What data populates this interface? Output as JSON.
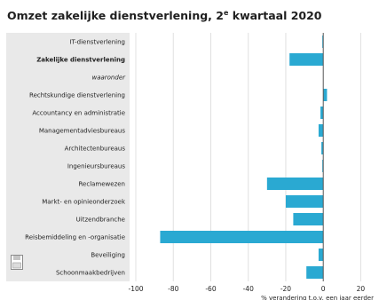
{
  "title": "Omzet zakelijke dienstverlening, 2",
  "title_sup": "e",
  "title_rest": " kwartaal 2020",
  "colors": {
    "bar": "#2aa9d2",
    "grid": "#e0e0e0",
    "label_bg": "#e9e9e9",
    "text": "#1f1f1f",
    "zero_line": "#555555"
  },
  "chart_data": {
    "type": "bar",
    "orientation": "horizontal",
    "categories": [
      "IT-dienstverlening",
      "Zakelijke dienstverlening",
      "waaronder",
      "Rechtskundige dienstverlening",
      "Accountancy en administratie",
      "Managementadviesbureaus",
      "Architectenbureaus",
      "Ingenieursbureaus",
      "Reclamewezen",
      "Markt- en opinieonderzoek",
      "Uitzendbranche",
      "Reisbemiddeling en -organisatie",
      "Beveiliging",
      "Schoonmaakbedrijven"
    ],
    "bold_categories": [
      "Zakelijke dienstverlening"
    ],
    "italic_categories": [
      "waaronder"
    ],
    "values": [
      -0.5,
      -18,
      null,
      2,
      -1.5,
      -2.5,
      -1,
      -0.5,
      -30,
      -20,
      -16,
      -87,
      -2.5,
      -9
    ],
    "xlim": [
      -100,
      25
    ],
    "xticks": [
      -100,
      -80,
      -60,
      -40,
      -20,
      0,
      20
    ],
    "xlabel": "% verandering t.o.v. een jaar eerder",
    "grid": true
  },
  "icons": {
    "save": "save-icon"
  }
}
